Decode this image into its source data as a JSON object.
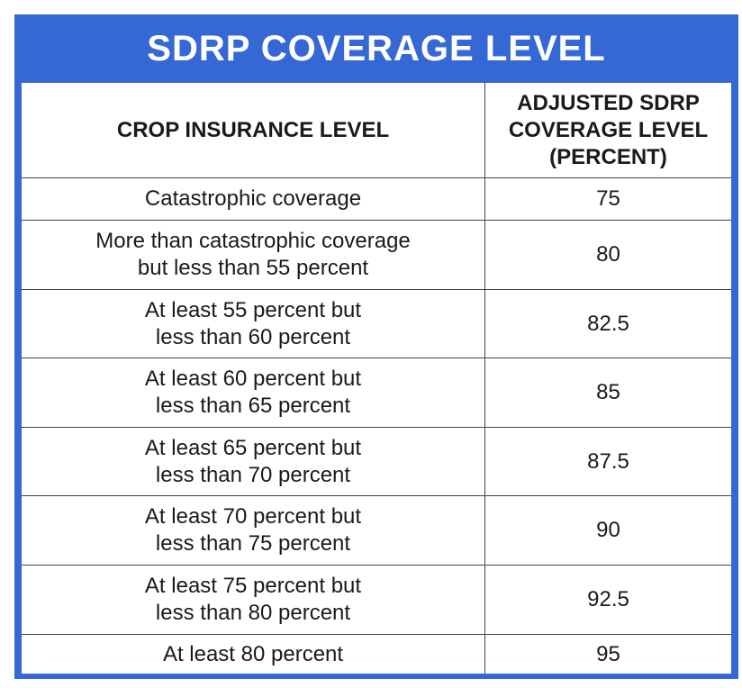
{
  "title": "SDRP COVERAGE LEVEL",
  "header": {
    "col1": "CROP INSURANCE LEVEL",
    "col2_lines": [
      "ADJUSTED SDRP",
      "COVERAGE LEVEL",
      "(PERCENT)"
    ]
  },
  "rows": [
    {
      "level_lines": [
        "Catastrophic coverage"
      ],
      "adjusted": "75"
    },
    {
      "level_lines": [
        "More than catastrophic coverage",
        "but less than 55 percent"
      ],
      "adjusted": "80"
    },
    {
      "level_lines": [
        "At least 55 percent but",
        "less than 60 percent"
      ],
      "adjusted": "82.5"
    },
    {
      "level_lines": [
        "At least 60 percent but",
        "less than 65 percent"
      ],
      "adjusted": "85"
    },
    {
      "level_lines": [
        "At least 65 percent but",
        "less than 70 percent"
      ],
      "adjusted": "87.5"
    },
    {
      "level_lines": [
        "At least 70 percent but",
        "less than 75 percent"
      ],
      "adjusted": "90"
    },
    {
      "level_lines": [
        "At least 75 percent but",
        "less than 80 percent"
      ],
      "adjusted": "92.5"
    },
    {
      "level_lines": [
        "At least 80 percent"
      ],
      "adjusted": "95"
    }
  ],
  "colors": {
    "frame": "#3568d4",
    "title_text": "#ffffff",
    "body_text": "#1a1a1a",
    "grid": "#444444"
  }
}
